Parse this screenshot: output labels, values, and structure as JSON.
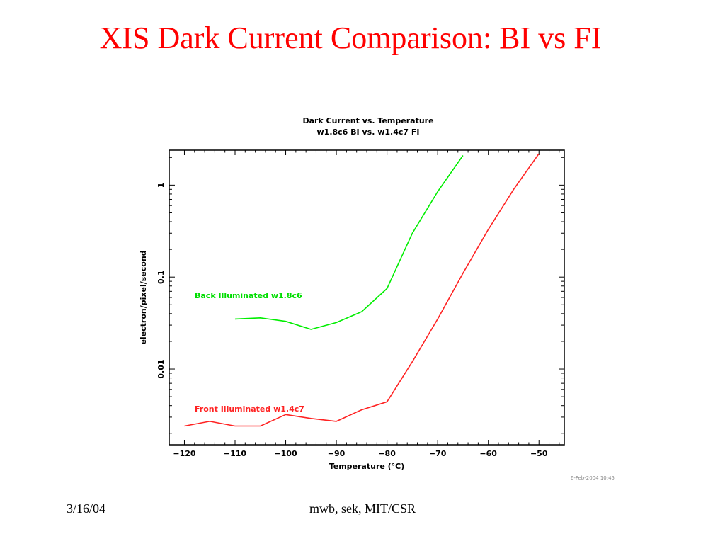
{
  "slide": {
    "title": "XIS Dark Current Comparison: BI vs FI",
    "footer_date": "3/16/04",
    "footer_center": "mwb, sek, MIT/CSR"
  },
  "chart_data": {
    "type": "line",
    "title": "Dark Current vs. Temperature",
    "subtitle": "w1.8c6 BI vs. w1.4c7 FI",
    "xlabel": "Temperature (°C)",
    "ylabel": "electron/pixel/second",
    "xlim": [
      -123,
      -45
    ],
    "ylim": [
      0.0015,
      2.4
    ],
    "yscale": "log",
    "xticks": [
      -120,
      -110,
      -100,
      -90,
      -80,
      -70,
      -60,
      -50
    ],
    "xtick_labels": [
      "−120",
      "−110",
      "−100",
      "−90",
      "−80",
      "−70",
      "−60",
      "−50"
    ],
    "yticks": [
      0.01,
      0.1,
      1
    ],
    "ytick_labels": [
      "0.01",
      "0.1",
      "1"
    ],
    "grid": false,
    "timestamp": "6-Feb-2004 10:45",
    "series": [
      {
        "name": "Back Illuminated w1.8c6",
        "color": "#00ee00",
        "x": [
          -110,
          -105,
          -100,
          -95,
          -90,
          -85,
          -80,
          -75,
          -70,
          -65
        ],
        "y": [
          0.035,
          0.036,
          0.033,
          0.027,
          0.032,
          0.042,
          0.075,
          0.3,
          0.85,
          2.1
        ]
      },
      {
        "name": "Front Illuminated w1.4c7",
        "color": "#ff2222",
        "x": [
          -120,
          -115,
          -110,
          -105,
          -100,
          -95,
          -90,
          -85,
          -80,
          -75,
          -70,
          -65,
          -60,
          -55,
          -50
        ],
        "y": [
          0.0024,
          0.0027,
          0.0024,
          0.0024,
          0.0032,
          0.0029,
          0.0027,
          0.0036,
          0.0044,
          0.012,
          0.035,
          0.11,
          0.33,
          0.9,
          2.2
        ]
      }
    ]
  }
}
